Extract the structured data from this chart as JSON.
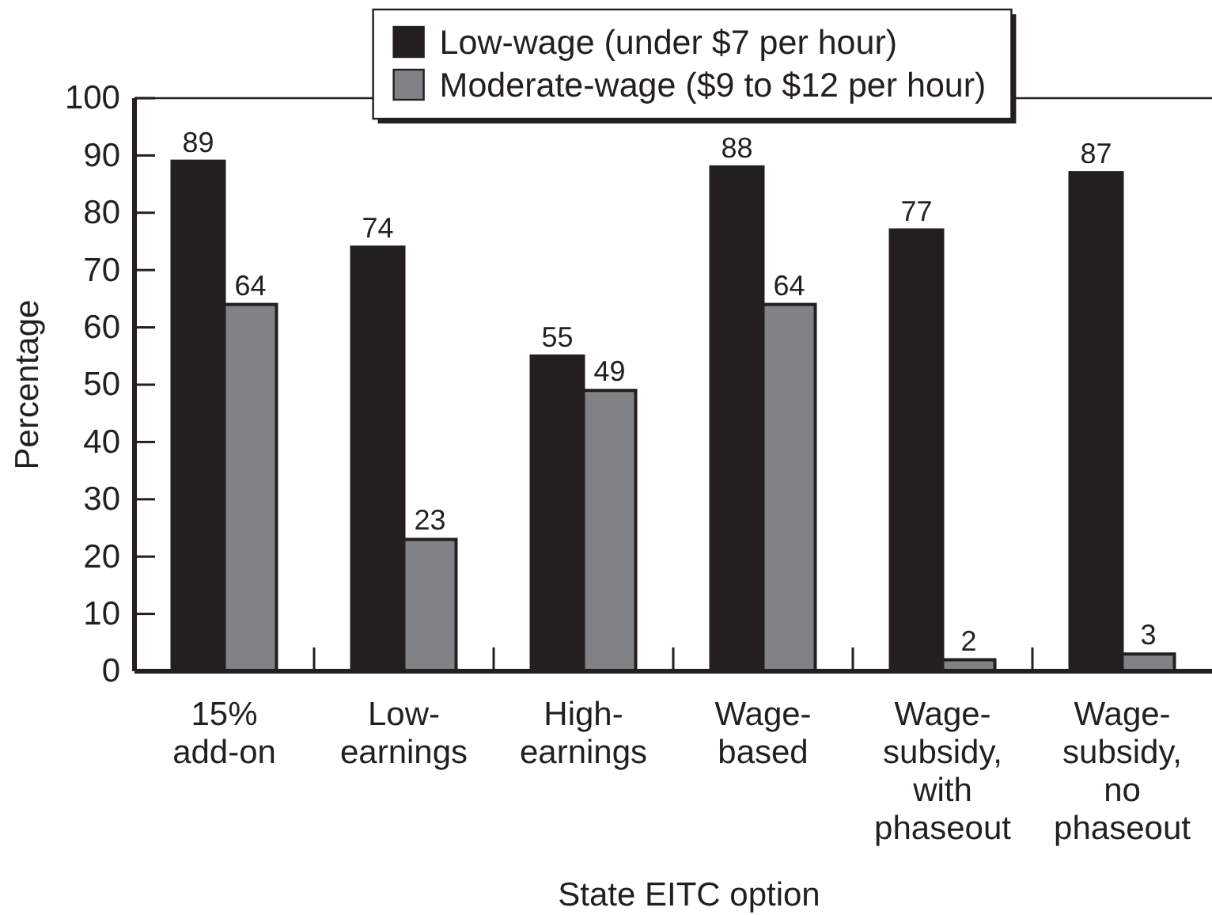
{
  "chart_data": {
    "type": "bar",
    "xlabel": "State EITC option",
    "ylabel": "Percentage",
    "categories": [
      "15%\nadd-on",
      "Low-\nearnings",
      "High-\nearnings",
      "Wage-\nbased",
      "Wage-\nsubsidy,\nwith\nphaseout",
      "Wage-\nsubsidy,\nno\nphaseout"
    ],
    "series": [
      {
        "name": "Low-wage (under $7 per hour)",
        "color": "#231f20",
        "values": [
          89,
          74,
          55,
          88,
          77,
          87
        ]
      },
      {
        "name": "Moderate-wage ($9 to $12 per hour)",
        "color": "#808285",
        "values": [
          64,
          23,
          49,
          64,
          2,
          3
        ]
      }
    ],
    "ylim": [
      0,
      100
    ],
    "yticks": [
      0,
      10,
      20,
      30,
      40,
      50,
      60,
      70,
      80,
      90,
      100
    ],
    "grid": false,
    "legend": "top",
    "data_labels": true
  }
}
